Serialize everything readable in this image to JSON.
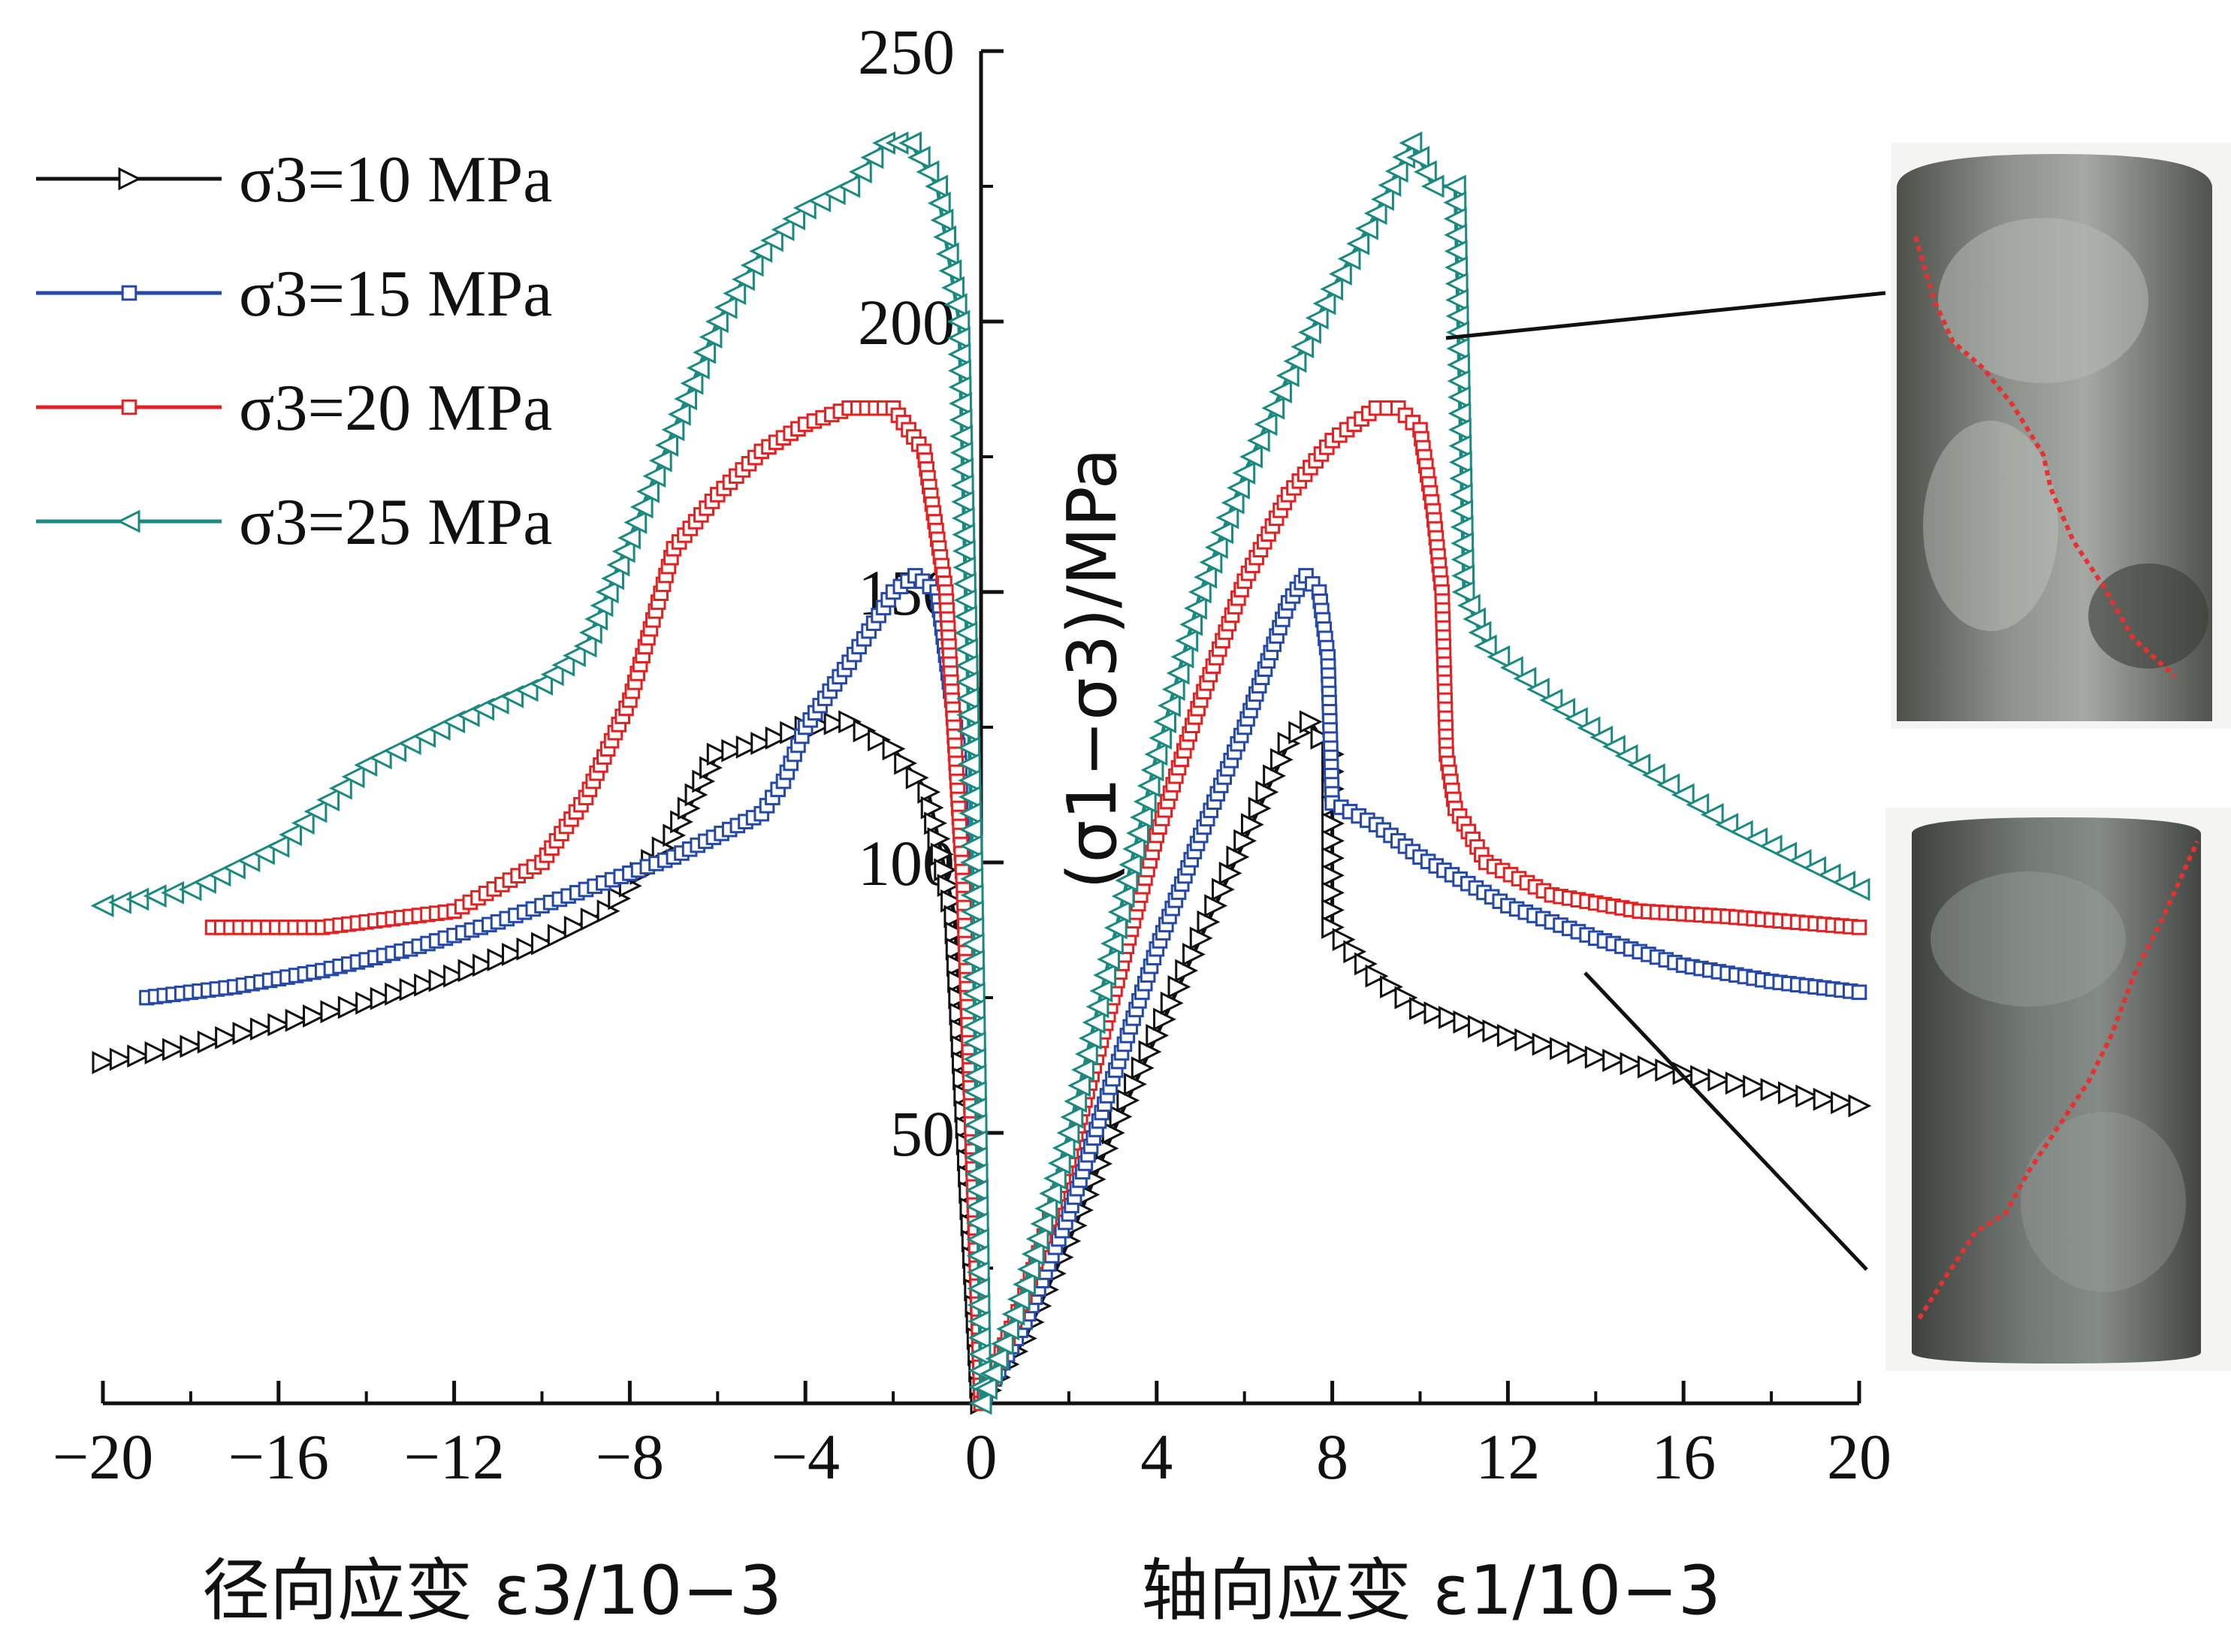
{
  "chart_data": {
    "type": "line",
    "ylabel": "(σ1−σ3)/MPa",
    "xlabel_left": "径向应变 ε3/10−3",
    "xlabel_right": "轴向应变 ε1/10−3",
    "xlim": [
      -20,
      20
    ],
    "ylim": [
      0,
      250
    ],
    "x_ticks": [
      "−20",
      "−16",
      "−12",
      "−8",
      "−4",
      "0",
      "4",
      "8",
      "12",
      "16",
      "20"
    ],
    "y_ticks": [
      "50",
      "100",
      "150",
      "200",
      "250"
    ],
    "grid": false,
    "legend_position": "top-left",
    "series": [
      {
        "name": "σ3=10 MPa",
        "color": "#111111",
        "marker": "triangle-right",
        "points": [
          [
            -20,
            63
          ],
          [
            -18,
            66
          ],
          [
            -16,
            70
          ],
          [
            -14,
            74
          ],
          [
            -12,
            79
          ],
          [
            -10,
            85
          ],
          [
            -8.5,
            91
          ],
          [
            -7,
            105
          ],
          [
            -6,
            120
          ],
          [
            -5,
            122
          ],
          [
            -4,
            125
          ],
          [
            -3,
            126
          ],
          [
            -2,
            121
          ],
          [
            -1.2,
            113
          ],
          [
            -0.6,
            90
          ],
          [
            -0.3,
            45
          ],
          [
            0,
            0
          ],
          [
            1,
            12
          ],
          [
            2,
            30
          ],
          [
            3,
            50
          ],
          [
            4,
            68
          ],
          [
            5,
            86
          ],
          [
            6,
            104
          ],
          [
            7,
            122
          ],
          [
            7.5,
            126
          ],
          [
            8,
            120
          ],
          [
            8,
            88
          ],
          [
            9,
            79
          ],
          [
            10,
            73
          ],
          [
            12,
            68
          ],
          [
            14,
            64
          ],
          [
            16,
            61
          ],
          [
            18,
            58
          ],
          [
            20,
            55
          ]
        ]
      },
      {
        "name": "σ3=15 MPa",
        "color": "#2449a8",
        "marker": "square",
        "points": [
          [
            -19,
            75
          ],
          [
            -17,
            77
          ],
          [
            -15,
            80
          ],
          [
            -13,
            84
          ],
          [
            -11,
            89
          ],
          [
            -9,
            95
          ],
          [
            -7,
            101
          ],
          [
            -5,
            109
          ],
          [
            -4.5,
            115
          ],
          [
            -4,
            125
          ],
          [
            -3,
            137
          ],
          [
            -2,
            150
          ],
          [
            -1.5,
            153
          ],
          [
            -1,
            150
          ],
          [
            -0.5,
            120
          ],
          [
            0,
            0
          ],
          [
            1,
            15
          ],
          [
            2,
            35
          ],
          [
            3,
            60
          ],
          [
            4,
            84
          ],
          [
            5,
            105
          ],
          [
            6,
            125
          ],
          [
            7,
            148
          ],
          [
            7.4,
            153
          ],
          [
            7.7,
            150
          ],
          [
            7.9,
            138
          ],
          [
            8,
            111
          ],
          [
            9,
            107
          ],
          [
            10,
            101
          ],
          [
            12,
            92
          ],
          [
            14,
            86
          ],
          [
            16,
            81
          ],
          [
            18,
            78
          ],
          [
            20,
            76
          ]
        ]
      },
      {
        "name": "σ3=20 MPa",
        "color": "#e02222",
        "marker": "square",
        "points": [
          [
            -17.5,
            88
          ],
          [
            -15,
            88
          ],
          [
            -12,
            91
          ],
          [
            -10,
            100
          ],
          [
            -9,
            112
          ],
          [
            -8,
            130
          ],
          [
            -7,
            158
          ],
          [
            -6,
            168
          ],
          [
            -5,
            176
          ],
          [
            -4,
            181
          ],
          [
            -3,
            184
          ],
          [
            -2,
            184
          ],
          [
            -1.3,
            176
          ],
          [
            -0.8,
            150
          ],
          [
            -0.4,
            95
          ],
          [
            0,
            0
          ],
          [
            1,
            20
          ],
          [
            2,
            45
          ],
          [
            3,
            75
          ],
          [
            4,
            105
          ],
          [
            5,
            130
          ],
          [
            6,
            152
          ],
          [
            7,
            168
          ],
          [
            8,
            178
          ],
          [
            9,
            184
          ],
          [
            9.5,
            184
          ],
          [
            10,
            180
          ],
          [
            10.3,
            165
          ],
          [
            10.5,
            150
          ],
          [
            10.6,
            120
          ],
          [
            10.8,
            110
          ],
          [
            11.5,
            100
          ],
          [
            13,
            94
          ],
          [
            15,
            91
          ],
          [
            17,
            90
          ],
          [
            20,
            88
          ]
        ]
      },
      {
        "name": "σ3=25 MPa",
        "color": "#1a8a80",
        "marker": "triangle-left",
        "points": [
          [
            -20,
            92
          ],
          [
            -18,
            95
          ],
          [
            -16,
            103
          ],
          [
            -14,
            118
          ],
          [
            -12,
            126
          ],
          [
            -10,
            133
          ],
          [
            -9,
            140
          ],
          [
            -8.5,
            150
          ],
          [
            -8,
            160
          ],
          [
            -7,
            180
          ],
          [
            -6,
            200
          ],
          [
            -5,
            213
          ],
          [
            -4,
            221
          ],
          [
            -3,
            225
          ],
          [
            -2.2,
            233
          ],
          [
            -1.6,
            233
          ],
          [
            -1,
            225
          ],
          [
            -0.5,
            200
          ],
          [
            -0.2,
            100
          ],
          [
            0,
            0
          ],
          [
            1,
            22
          ],
          [
            2,
            50
          ],
          [
            3,
            85
          ],
          [
            4,
            120
          ],
          [
            5,
            150
          ],
          [
            6,
            172
          ],
          [
            7,
            190
          ],
          [
            8,
            206
          ],
          [
            9,
            220
          ],
          [
            9.8,
            233
          ],
          [
            10.3,
            225
          ],
          [
            10.8,
            225
          ],
          [
            11,
            150
          ],
          [
            11.5,
            140
          ],
          [
            13,
            130
          ],
          [
            15,
            118
          ],
          [
            17,
            107
          ],
          [
            20,
            95
          ]
        ]
      }
    ]
  },
  "photos": [
    {
      "name": "specimen-25mpa",
      "fracture_color": "#e83030"
    },
    {
      "name": "specimen-15mpa",
      "fracture_color": "#e83030"
    }
  ]
}
